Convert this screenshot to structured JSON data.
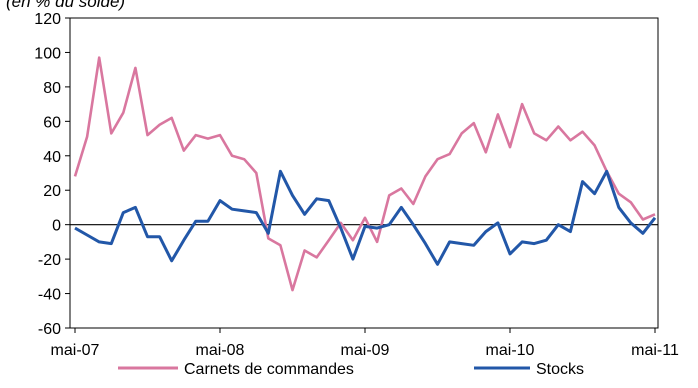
{
  "chart_data": {
    "type": "line",
    "subtitle": "(en % du solde)",
    "x_labels": [
      "mai-07",
      "mai-08",
      "mai-09",
      "mai-10",
      "mai-11"
    ],
    "ylim": [
      -60,
      120
    ],
    "yticks": [
      -60,
      -40,
      -20,
      0,
      20,
      40,
      60,
      80,
      100,
      120
    ],
    "grid": false,
    "legend_position": "bottom",
    "series": [
      {
        "name": "Carnets de commandes",
        "color": "#d9779f",
        "values": [
          28,
          51,
          97,
          53,
          65,
          91,
          52,
          58,
          62,
          43,
          52,
          50,
          52,
          40,
          38,
          30,
          -8,
          -12,
          -38,
          -15,
          -19,
          -9,
          1,
          -9,
          4,
          -10,
          17,
          21,
          12,
          28,
          38,
          41,
          53,
          59,
          42,
          64,
          45,
          70,
          53,
          49,
          57,
          49,
          54,
          46,
          31,
          18,
          13,
          3,
          6
        ]
      },
      {
        "name": "Stocks",
        "color": "#2257a8",
        "values": [
          -2,
          -6,
          -10,
          -11,
          7,
          10,
          -7,
          -7,
          -21,
          -9,
          2,
          2,
          14,
          9,
          8,
          7,
          -5,
          31,
          17,
          6,
          15,
          14,
          -2,
          -20,
          -1,
          -2,
          0,
          10,
          0,
          -11,
          -23,
          -10,
          -11,
          -12,
          -4,
          1,
          -17,
          -10,
          -11,
          -9,
          0,
          -4,
          25,
          18,
          31,
          10,
          1,
          -5,
          4
        ]
      }
    ]
  }
}
